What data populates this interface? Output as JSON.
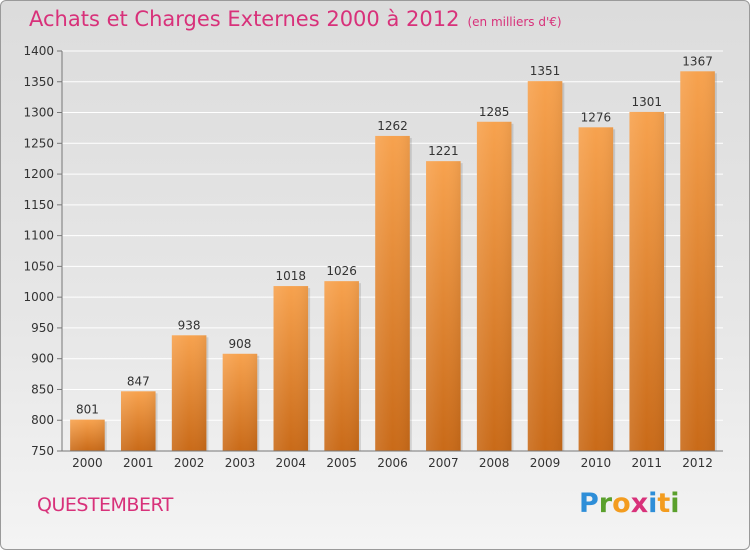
{
  "title": "Achats et Charges Externes 2000 à 2012",
  "subtitle": "(en milliers d'€)",
  "commune": "QUESTEMBERT",
  "logo": {
    "letters": [
      "P",
      "r",
      "o",
      "x",
      "i",
      "t",
      "i"
    ],
    "colors": [
      "#2e8ed8",
      "#5aa02c",
      "#f39c1f",
      "#d8317a",
      "#2e8ed8",
      "#f39c1f",
      "#5aa02c"
    ]
  },
  "colors": {
    "bar_top": "#f7a24e",
    "bar_bottom": "#c96a18",
    "title": "#d8317a"
  },
  "chart_data": {
    "type": "bar",
    "categories": [
      "2000",
      "2001",
      "2002",
      "2003",
      "2004",
      "2005",
      "2006",
      "2007",
      "2008",
      "2009",
      "2010",
      "2011",
      "2012"
    ],
    "values": [
      801,
      847,
      938,
      908,
      1018,
      1026,
      1262,
      1221,
      1285,
      1351,
      1276,
      1301,
      1367
    ],
    "data_labels": [
      "801",
      "847",
      "938",
      "908",
      "1018",
      "1026",
      "1262",
      "1221",
      "1285",
      "1351",
      "1276",
      "1301",
      "1367"
    ],
    "yticks": [
      "750",
      "800",
      "850",
      "900",
      "950",
      "1000",
      "1050",
      "1100",
      "1150",
      "1200",
      "1250",
      "1300",
      "1350",
      "1400"
    ],
    "ylim": [
      750,
      1400
    ],
    "grid": true,
    "legend": "none"
  }
}
